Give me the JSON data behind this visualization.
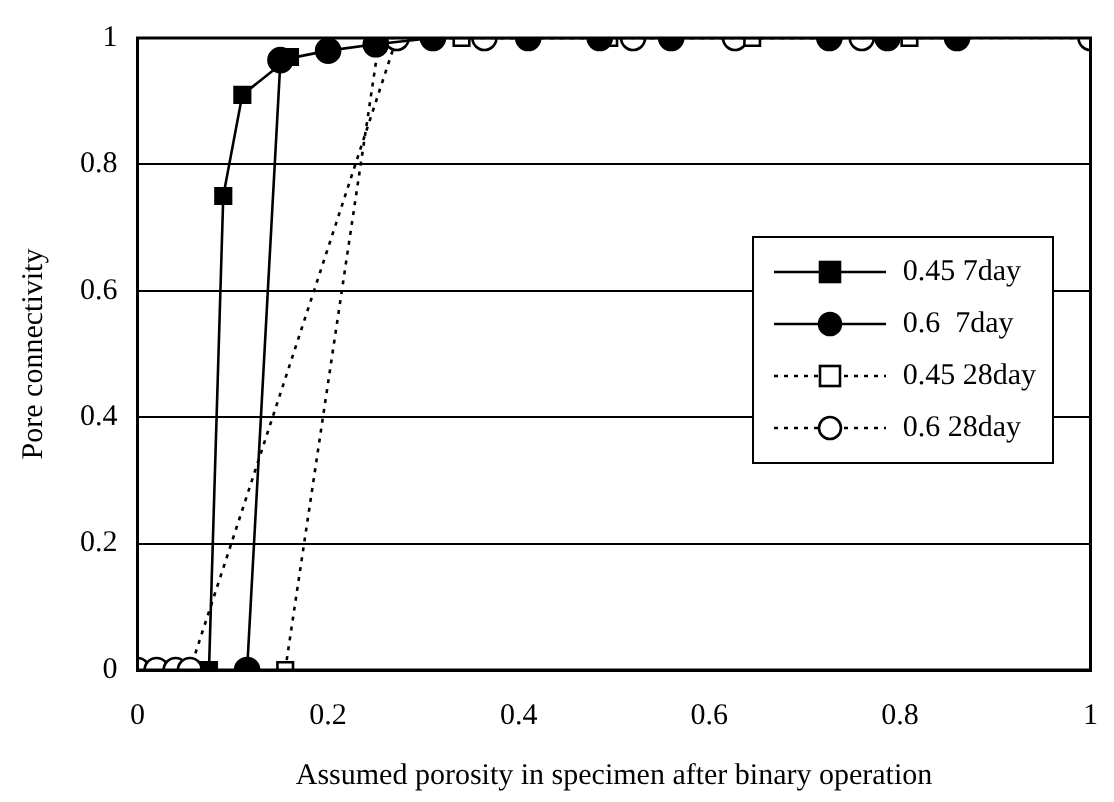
{
  "chart_data": {
    "type": "line",
    "xlabel": "Assumed porosity in specimen after binary operation",
    "ylabel": "Pore connectivity",
    "xlim": [
      0,
      1
    ],
    "xticks": [
      0,
      0.2,
      0.4,
      0.6,
      0.8,
      1
    ],
    "ylim": [
      0,
      1
    ],
    "yticks": [
      0,
      0.2,
      0.4,
      0.6,
      0.8,
      1
    ],
    "grid": "y",
    "legend": "right",
    "series": [
      {
        "name": "0.45 7day",
        "color": "#000000",
        "marker": "square",
        "line_style": "solid",
        "x": [
          0.075,
          0.09,
          0.11,
          0.16
        ],
        "values": [
          0,
          0.75,
          0.91,
          0.97
        ]
      },
      {
        "name": "0.6  7day",
        "color": "#000000",
        "marker": "circle",
        "line_style": "solid",
        "x": [
          0.115,
          0.15,
          0.2,
          0.25,
          0.31,
          0.41,
          0.485,
          0.56,
          0.726,
          0.787,
          0.86
        ],
        "values": [
          0,
          0.965,
          0.98,
          0.99,
          1,
          1,
          1,
          1,
          1,
          1,
          1
        ]
      },
      {
        "name": "0.45 28day",
        "color": "#000000",
        "marker": "square",
        "line_style": "dotted",
        "x": [
          0.155,
          0.254,
          0.34,
          0.495,
          0.645,
          0.81
        ],
        "values": [
          0,
          1,
          1,
          1,
          1,
          1
        ]
      },
      {
        "name": "0.6 28day",
        "color": "#000000",
        "marker": "circle",
        "line_style": "dotted",
        "x": [
          0,
          0.02,
          0.04,
          0.055,
          0.272,
          0.364,
          0.52,
          0.627,
          0.76,
          1
        ],
        "values": [
          0,
          0,
          0,
          0,
          1,
          1,
          1,
          1,
          1,
          1
        ]
      }
    ]
  }
}
